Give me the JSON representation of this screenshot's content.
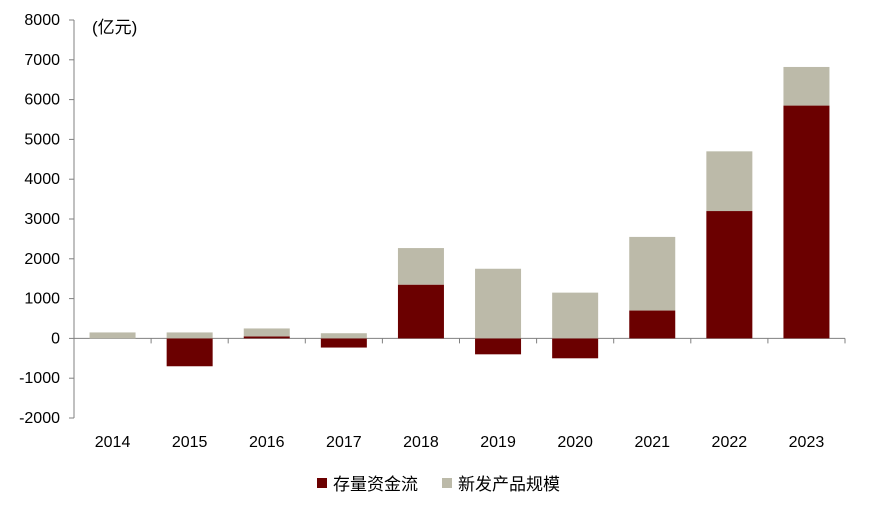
{
  "chart_data": {
    "type": "bar",
    "stacked": true,
    "unit_label": "(亿元)",
    "categories": [
      "2014",
      "2015",
      "2016",
      "2017",
      "2018",
      "2019",
      "2020",
      "2021",
      "2022",
      "2023"
    ],
    "series": [
      {
        "name": "存量资金流",
        "color": "#6b0000",
        "values": [
          0,
          -700,
          50,
          -230,
          1350,
          -400,
          -500,
          700,
          3200,
          5850
        ]
      },
      {
        "name": "新发产品规模",
        "color": "#bcbaa9",
        "values": [
          150,
          150,
          200,
          130,
          920,
          1750,
          1150,
          1850,
          1500,
          970
        ]
      }
    ],
    "ylim": [
      -2000,
      8000
    ],
    "yticks": [
      "-2000",
      "-1000",
      "0",
      "1000",
      "2000",
      "3000",
      "4000",
      "5000",
      "6000",
      "7000",
      "8000"
    ],
    "grid": false,
    "legend_position": "bottom"
  }
}
